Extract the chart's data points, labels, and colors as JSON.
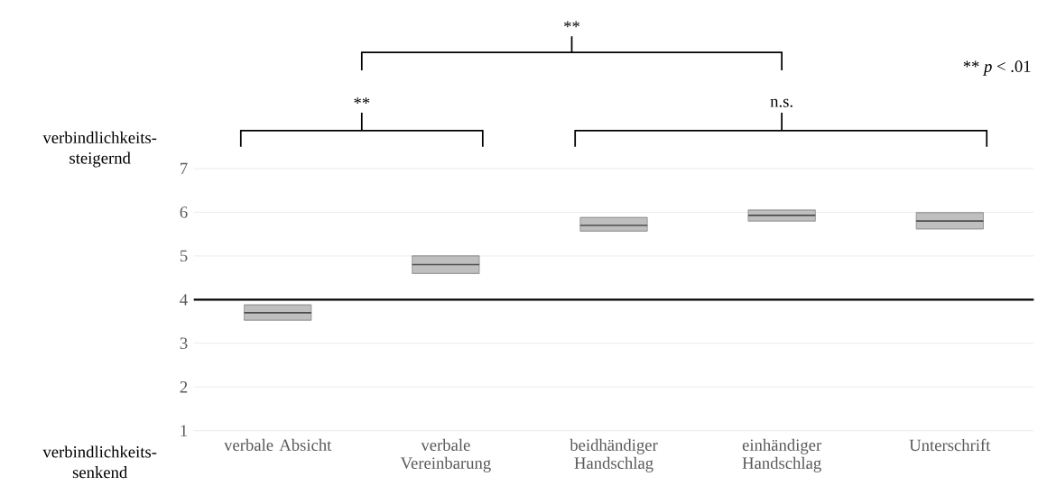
{
  "chart_data": {
    "type": "box",
    "categories": [
      "verbale Absicht",
      "verbale Vereinbarung",
      "beidhändiger Handschlag",
      "einhändiger Handschlag",
      "Unterschrift"
    ],
    "boxes": [
      {
        "low": 3.53,
        "q1": 3.53,
        "median": 3.7,
        "q3": 3.88,
        "high": 3.88
      },
      {
        "low": 4.6,
        "q1": 4.6,
        "median": 4.8,
        "q3": 5.0,
        "high": 5.0
      },
      {
        "low": 5.57,
        "q1": 5.57,
        "median": 5.7,
        "q3": 5.88,
        "high": 5.88
      },
      {
        "low": 5.8,
        "q1": 5.8,
        "median": 5.93,
        "q3": 6.05,
        "high": 6.05
      },
      {
        "low": 5.62,
        "q1": 5.62,
        "median": 5.8,
        "q3": 5.99,
        "high": 5.99
      }
    ],
    "color": "#bfbfbf",
    "ylim": [
      1,
      7
    ],
    "yticks": [
      1,
      2,
      3,
      4,
      5,
      6,
      7
    ],
    "grid": "y",
    "ref_lines": [
      {
        "axis": "y",
        "value": 4,
        "color": "#000000"
      }
    ],
    "annotations": [
      "verbindlichkeits-steigernd",
      "verbindlichkeits-senkend",
      "**",
      "**",
      "n.s.",
      "** *p* < .01"
    ]
  }
}
